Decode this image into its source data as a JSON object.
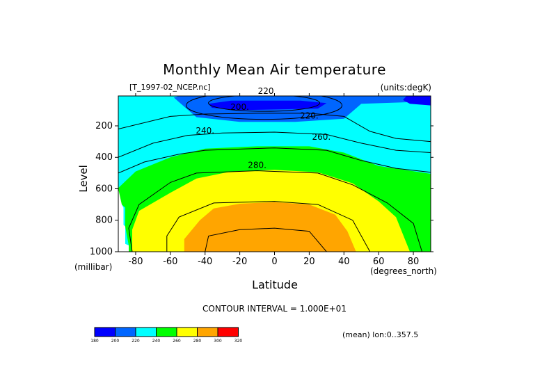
{
  "chart_data": {
    "type": "heatmap",
    "title": "Monthly Mean Air temperature",
    "source": "[T_1997-02_NCEP.nc]",
    "units": "(units:degK)",
    "xlabel": "Latitude",
    "x_unit": "(degrees_north)",
    "ylabel": "Level",
    "y_unit": "(millibar)",
    "xlim": [
      -90,
      90
    ],
    "ylim": [
      1000,
      10
    ],
    "y_reversed": true,
    "x_ticks": [
      -80,
      -60,
      -40,
      -20,
      0,
      20,
      40,
      60,
      80
    ],
    "x_tick_labels": [
      "-80",
      "-60",
      "-40",
      "-20",
      "0",
      "20",
      "40",
      "60",
      "80"
    ],
    "y_ticks": [
      200,
      400,
      600,
      800,
      1000
    ],
    "y_tick_labels": [
      "200",
      "400",
      "600",
      "800",
      "1000"
    ],
    "contour_interval": "CONTOUR INTERVAL = 1.000E+01",
    "contour_levels": [
      180,
      200,
      220,
      240,
      260,
      280,
      300,
      320
    ],
    "contour_labels": [
      "220",
      "200.",
      "220.",
      "240.",
      "260.",
      "280."
    ],
    "colorbar": {
      "labels": [
        "180",
        "200",
        "220",
        "240",
        "260",
        "280",
        "300",
        "320"
      ],
      "colors": [
        "#0000ff",
        "#0066ff",
        "#00ffff",
        "#00ff00",
        "#ffff00",
        "#ffa500",
        "#ff0000"
      ]
    },
    "note": "(mean) lon:0..357.5",
    "colors": {
      "band_180_200": "#0000ff",
      "band_200_220": "#0066ff",
      "band_220_240": "#00ffff",
      "band_240_260": "#00ff00",
      "band_260_280": "#ffff00",
      "band_280_300": "#ffa500"
    },
    "regions": [
      {
        "name": "band_200_220",
        "color": "#0066ff",
        "points": [
          [
            -55,
            10
          ],
          [
            55,
            10
          ],
          [
            90,
            10
          ],
          [
            90,
            45
          ],
          [
            50,
            60
          ],
          [
            40,
            155
          ],
          [
            12,
            175
          ],
          [
            -20,
            175
          ],
          [
            -45,
            145
          ],
          [
            -58,
            20
          ]
        ]
      },
      {
        "name": "band_180_200",
        "color": "#0000ff",
        "points": [
          [
            -38,
            60
          ],
          [
            -25,
            40
          ],
          [
            15,
            40
          ],
          [
            30,
            55
          ],
          [
            25,
            90
          ],
          [
            -20,
            100
          ],
          [
            -36,
            85
          ]
        ]
      },
      {
        "name": "band_180_200_north",
        "color": "#0000ff",
        "points": [
          [
            76,
            10
          ],
          [
            90,
            10
          ],
          [
            90,
            70
          ],
          [
            78,
            60
          ],
          [
            74,
            35
          ]
        ]
      },
      {
        "name": "band_240_260",
        "color": "#00ff00",
        "points": [
          [
            -90,
            595
          ],
          [
            -80,
            490
          ],
          [
            -60,
            400
          ],
          [
            -40,
            345
          ],
          [
            -10,
            330
          ],
          [
            20,
            330
          ],
          [
            40,
            370
          ],
          [
            60,
            455
          ],
          [
            90,
            505
          ],
          [
            90,
            1000
          ],
          [
            62,
            1000
          ],
          [
            80,
            1000
          ],
          [
            84,
            1000
          ],
          [
            -84,
            1000
          ],
          [
            -84,
            960
          ],
          [
            -86,
            840
          ],
          [
            -86,
            720
          ],
          [
            -90,
            680
          ]
        ]
      },
      {
        "name": "band_260_280",
        "color": "#ffff00",
        "points": [
          [
            -82,
            1000
          ],
          [
            -82,
            860
          ],
          [
            -78,
            740
          ],
          [
            -60,
            625
          ],
          [
            -45,
            535
          ],
          [
            -25,
            490
          ],
          [
            0,
            480
          ],
          [
            25,
            495
          ],
          [
            45,
            565
          ],
          [
            60,
            680
          ],
          [
            70,
            780
          ],
          [
            78,
            1000
          ]
        ]
      },
      {
        "name": "band_280_300",
        "color": "#ffa500",
        "points": [
          [
            -52,
            1000
          ],
          [
            -52,
            920
          ],
          [
            -43,
            800
          ],
          [
            -35,
            725
          ],
          [
            -20,
            695
          ],
          [
            0,
            685
          ],
          [
            20,
            700
          ],
          [
            35,
            765
          ],
          [
            42,
            870
          ],
          [
            47,
            1000
          ]
        ]
      }
    ],
    "white_region": [
      [
        -90,
        600
      ],
      [
        -90,
        1000
      ],
      [
        -84,
        1000
      ],
      [
        -84,
        960
      ],
      [
        -86,
        950
      ],
      [
        -86,
        840
      ],
      [
        -87,
        830
      ],
      [
        -87,
        720
      ],
      [
        -88,
        700
      ]
    ],
    "contour_lines": [
      [
        [
          -90,
          220
        ],
        [
          -60,
          140
        ],
        [
          -40,
          125
        ],
        [
          -10,
          120
        ],
        [
          20,
          120
        ],
        [
          40,
          140
        ],
        [
          55,
          235
        ],
        [
          70,
          280
        ],
        [
          90,
          300
        ]
      ],
      [
        [
          -90,
          400
        ],
        [
          -70,
          310
        ],
        [
          -50,
          260
        ],
        [
          -30,
          245
        ],
        [
          0,
          240
        ],
        [
          30,
          255
        ],
        [
          50,
          310
        ],
        [
          70,
          355
        ],
        [
          90,
          370
        ]
      ],
      [
        [
          -90,
          500
        ],
        [
          -75,
          430
        ],
        [
          -55,
          380
        ],
        [
          -40,
          355
        ],
        [
          0,
          340
        ],
        [
          30,
          355
        ],
        [
          50,
          420
        ],
        [
          70,
          470
        ],
        [
          90,
          495
        ]
      ],
      [
        [
          -82,
          1000
        ],
        [
          -84,
          850
        ],
        [
          -78,
          700
        ],
        [
          -60,
          560
        ],
        [
          -45,
          500
        ],
        [
          -10,
          485
        ],
        [
          25,
          500
        ],
        [
          45,
          575
        ],
        [
          65,
          690
        ],
        [
          80,
          820
        ],
        [
          85,
          1000
        ]
      ],
      [
        [
          -62,
          1000
        ],
        [
          -62,
          900
        ],
        [
          -55,
          780
        ],
        [
          -35,
          690
        ],
        [
          0,
          680
        ],
        [
          25,
          700
        ],
        [
          45,
          800
        ],
        [
          55,
          1000
        ]
      ],
      [
        [
          -40,
          1000
        ],
        [
          -38,
          900
        ],
        [
          -20,
          860
        ],
        [
          0,
          850
        ],
        [
          20,
          870
        ],
        [
          30,
          1000
        ]
      ]
    ]
  }
}
